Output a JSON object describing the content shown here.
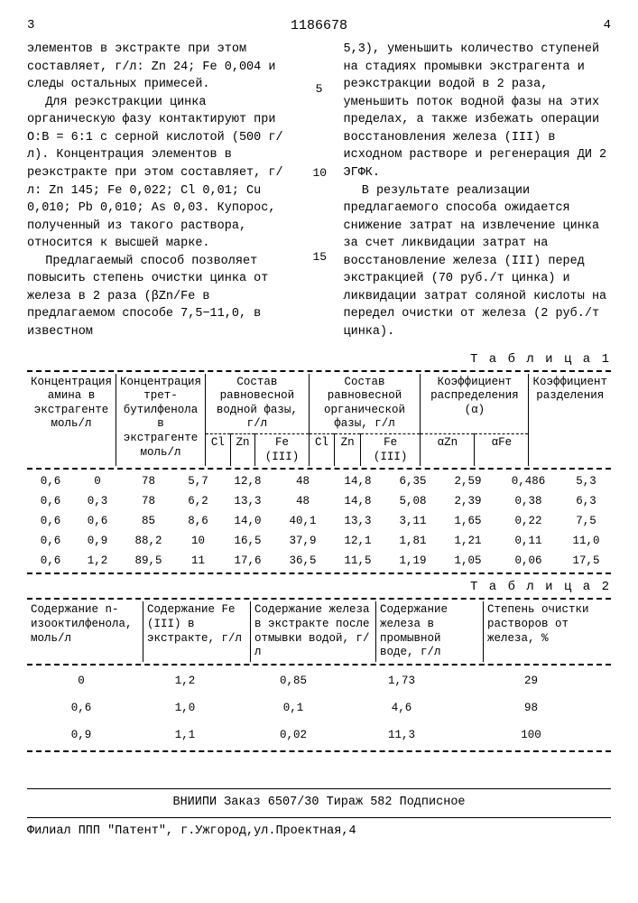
{
  "header": {
    "colnum_left": "3",
    "docnum": "1186678",
    "colnum_right": "4"
  },
  "left_col": {
    "p1": "элементов в экстракте при этом составляет, г/л: Zn 24; Fe 0,004 и следы остальных примесей.",
    "p2": "Для реэкстракции цинка органическую фазу контактируют при O:B = 6:1 с серной кислотой (500 г/л). Концентрация элементов в реэкстракте при этом составляет, г/л: Zn 145; Fe 0,022; Cl 0,01; Cu 0,010; Pb 0,010; As 0,03. Купорос, полученный из такого раствора, относится к высшей марке.",
    "p3": "Предлагаемый способ позволяет повысить степень очистки цинка от железа в 2 раза (βZn/Fe в предлагаемом способе 7,5−11,0, в известном",
    "margin_5": "5",
    "margin_10": "10",
    "margin_15": "15"
  },
  "right_col": {
    "p1": "5,3), уменьшить количество ступеней на стадиях промывки экстрагента и реэкстракции водой в 2 раза, уменьшить поток водной фазы на этих пределах, а также избежать операции восстановления железа (III) в исходном растворе и регенерация ДИ 2 ЭГФК.",
    "p2": "В результате реализации предлагаемого способа ожидается снижение затрат на извлечение цинка за счет ликвидации затрат на восстановление железа (III) перед экстракцией (70 руб./т цинка) и ликвидации затрат соляной кислоты на передел очистки от железа (2 руб./т цинка)."
  },
  "table1": {
    "caption": "Т а б л и ц а   1",
    "head": {
      "c1": "Концентрация амина в экстрагенте моль/л",
      "c2": "Концентрация трет-бутилфенола в экстрагенте моль/л",
      "g1": "Состав равновесной водной фазы, г/л",
      "g2": "Состав равновесной органической фазы, г/л",
      "g3": "Коэффициент распределения (α)",
      "c_last": "Коэффициент разделения",
      "s1": "Cl",
      "s2": "Zn",
      "s3": "Fe (III)",
      "s4": "Cl",
      "s5": "Zn",
      "s6": "Fe (III)",
      "s7": "αZn",
      "s8": "αFe"
    },
    "rows": [
      [
        "0,6",
        "0",
        "78",
        "5,7",
        "12,8",
        "48",
        "14,8",
        "6,35",
        "2,59",
        "0,486",
        "5,3"
      ],
      [
        "0,6",
        "0,3",
        "78",
        "6,2",
        "13,3",
        "48",
        "14,8",
        "5,08",
        "2,39",
        "0,38",
        "6,3"
      ],
      [
        "0,6",
        "0,6",
        "85",
        "8,6",
        "14,0",
        "40,1",
        "13,3",
        "3,11",
        "1,65",
        "0,22",
        "7,5"
      ],
      [
        "0,6",
        "0,9",
        "88,2",
        "10",
        "16,5",
        "37,9",
        "12,1",
        "1,81",
        "1,21",
        "0,11",
        "11,0"
      ],
      [
        "0,6",
        "1,2",
        "89,5",
        "11",
        "17,6",
        "36,5",
        "11,5",
        "1,19",
        "1,05",
        "0,06",
        "17,5"
      ]
    ]
  },
  "table2": {
    "caption": "Т а б л и ц а   2",
    "head": {
      "c1": "Содержание n-изооктилфенола, моль/л",
      "c2": "Содержание Fe (III) в экстракте, г/л",
      "c3": "Содержание железа в экстракте после отмывки водой, г/л",
      "c4": "Содержание железа в промывной воде, г/л",
      "c5": "Степень очистки растворов от железа, %"
    },
    "rows": [
      [
        "0",
        "1,2",
        "0,85",
        "1,73",
        "29"
      ],
      [
        "0,6",
        "1,0",
        "0,1",
        "4,6",
        "98"
      ],
      [
        "0,9",
        "1,1",
        "0,02",
        "11,3",
        "100"
      ]
    ]
  },
  "footer": {
    "l1": "ВНИИПИ   Заказ 6507/30   Тираж 582   Подписное",
    "l2": "Филиал ППП \"Патент\",  г.Ужгород,ул.Проектная,4"
  }
}
